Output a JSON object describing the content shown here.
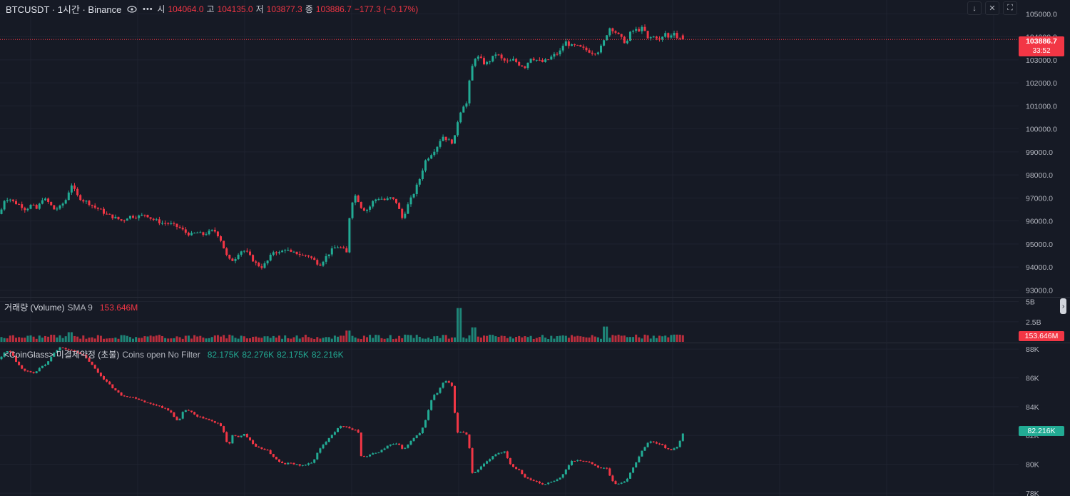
{
  "header": {
    "symbol": "BTCUSDT · 1시간 · Binance",
    "open_label": "시",
    "open": "104064.0",
    "high_label": "고",
    "high": "104135.0",
    "low_label": "저",
    "low": "103877.3",
    "close_label": "종",
    "close": "103886.7",
    "change": "−177.3 (−0.17%)"
  },
  "price_badge": {
    "price": "103886.7",
    "countdown": "33:52"
  },
  "volume": {
    "title": "거래량 (Volume)",
    "sma_label": "SMA 9",
    "value": "153.646M",
    "badge": "153.646M"
  },
  "open_interest": {
    "title": "<CoinGlass> 미결제약정 (초불)",
    "params": "Coins open No Filter",
    "o": "82.175K",
    "h": "82.276K",
    "l": "82.175K",
    "c": "82.216K",
    "badge": "82.216K"
  },
  "colors": {
    "up": "#22ab94",
    "down": "#f23645",
    "background": "#161a25",
    "grid": "#1f2330"
  },
  "icons": [
    "eye-icon",
    "more-icon",
    "arrow-down-icon",
    "collapse-icon",
    "fullscreen-icon"
  ],
  "chart_data": [
    {
      "type": "candlestick",
      "title": "BTCUSDT · 1시간 · Binance",
      "ylim": [
        92700,
        105600
      ],
      "y_ticks": [
        "105000.0",
        "104000.0",
        "103000.0",
        "102000.0",
        "101000.0",
        "100000.0",
        "99000.0",
        "98000.0",
        "97000.0",
        "96000.0",
        "95000.0",
        "94000.0",
        "93000.0"
      ],
      "anchors": [
        [
          0,
          96300
        ],
        [
          6,
          96900
        ],
        [
          12,
          97000
        ],
        [
          20,
          96800
        ],
        [
          28,
          96700
        ],
        [
          36,
          96500
        ],
        [
          44,
          96700
        ],
        [
          52,
          96500
        ],
        [
          60,
          97000
        ],
        [
          68,
          96800
        ],
        [
          76,
          96500
        ],
        [
          84,
          96600
        ],
        [
          92,
          96900
        ],
        [
          100,
          97600
        ],
        [
          108,
          97100
        ],
        [
          116,
          96900
        ],
        [
          124,
          96800
        ],
        [
          132,
          96600
        ],
        [
          140,
          96500
        ],
        [
          148,
          96300
        ],
        [
          156,
          96200
        ],
        [
          164,
          96100
        ],
        [
          172,
          96000
        ],
        [
          180,
          96200
        ],
        [
          188,
          96200
        ],
        [
          196,
          96200
        ],
        [
          204,
          96300
        ],
        [
          212,
          96100
        ],
        [
          220,
          96000
        ],
        [
          228,
          95900
        ],
        [
          236,
          95900
        ],
        [
          244,
          95800
        ],
        [
          252,
          95700
        ],
        [
          260,
          95500
        ],
        [
          268,
          95400
        ],
        [
          276,
          95500
        ],
        [
          284,
          95400
        ],
        [
          292,
          95500
        ],
        [
          300,
          95600
        ],
        [
          308,
          95300
        ],
        [
          314,
          94800
        ],
        [
          320,
          94300
        ],
        [
          328,
          94300
        ],
        [
          336,
          94700
        ],
        [
          344,
          94700
        ],
        [
          352,
          94400
        ],
        [
          360,
          94100
        ],
        [
          368,
          94000
        ],
        [
          376,
          94300
        ],
        [
          384,
          94700
        ],
        [
          392,
          94600
        ],
        [
          400,
          94800
        ],
        [
          408,
          94600
        ],
        [
          416,
          94600
        ],
        [
          424,
          94500
        ],
        [
          432,
          94500
        ],
        [
          440,
          94300
        ],
        [
          448,
          94100
        ],
        [
          456,
          94400
        ],
        [
          464,
          94700
        ],
        [
          472,
          94900
        ],
        [
          480,
          94800
        ],
        [
          486,
          94600
        ],
        [
          490,
          96200
        ],
        [
          496,
          97200
        ],
        [
          502,
          96900
        ],
        [
          508,
          96500
        ],
        [
          516,
          96500
        ],
        [
          524,
          96900
        ],
        [
          532,
          97000
        ],
        [
          540,
          96900
        ],
        [
          548,
          97000
        ],
        [
          556,
          96800
        ],
        [
          564,
          96100
        ],
        [
          572,
          96700
        ],
        [
          580,
          97200
        ],
        [
          588,
          97800
        ],
        [
          596,
          98600
        ],
        [
          604,
          98900
        ],
        [
          612,
          99200
        ],
        [
          620,
          99700
        ],
        [
          628,
          99500
        ],
        [
          636,
          99400
        ],
        [
          642,
          100400
        ],
        [
          648,
          101000
        ],
        [
          654,
          101100
        ],
        [
          660,
          102500
        ],
        [
          666,
          103100
        ],
        [
          672,
          103100
        ],
        [
          680,
          102800
        ],
        [
          688,
          103000
        ],
        [
          696,
          103300
        ],
        [
          704,
          103000
        ],
        [
          712,
          102900
        ],
        [
          720,
          103000
        ],
        [
          728,
          102800
        ],
        [
          736,
          102700
        ],
        [
          744,
          103100
        ],
        [
          752,
          103000
        ],
        [
          760,
          102900
        ],
        [
          768,
          103000
        ],
        [
          776,
          103200
        ],
        [
          784,
          103300
        ],
        [
          792,
          103800
        ],
        [
          800,
          103600
        ],
        [
          808,
          103600
        ],
        [
          816,
          103500
        ],
        [
          824,
          103400
        ],
        [
          832,
          103300
        ],
        [
          840,
          103400
        ],
        [
          848,
          103900
        ],
        [
          854,
          104400
        ],
        [
          860,
          104300
        ],
        [
          866,
          104100
        ],
        [
          872,
          103900
        ],
        [
          878,
          103700
        ],
        [
          884,
          104200
        ],
        [
          890,
          104300
        ],
        [
          896,
          104300
        ],
        [
          902,
          104400
        ],
        [
          908,
          103900
        ],
        [
          914,
          104000
        ],
        [
          920,
          104000
        ],
        [
          926,
          103800
        ],
        [
          932,
          104200
        ],
        [
          938,
          103900
        ],
        [
          944,
          104300
        ],
        [
          950,
          103900
        ],
        [
          958,
          103890
        ]
      ],
      "last": {
        "open": 104064.0,
        "high": 104135.0,
        "low": 103877.3,
        "close": 103886.7
      }
    },
    {
      "type": "bar",
      "title": "거래량 (Volume)",
      "ylim": [
        0,
        5.5
      ],
      "y_ticks": [
        "5B",
        "2.5B"
      ],
      "unit": "B",
      "spikes": [
        [
          100,
          1.2
        ],
        [
          488,
          1.4
        ],
        [
          642,
          4.2
        ],
        [
          664,
          1.8
        ],
        [
          850,
          1.9
        ],
        [
          948,
          0.9
        ]
      ]
    },
    {
      "type": "candlestick",
      "title": "<CoinGlass> 미결제약정 (초불)",
      "ylim": [
        77800,
        88400
      ],
      "y_ticks": [
        "88K",
        "86K",
        "84K",
        "82K",
        "80K",
        "78K"
      ],
      "anchors": [
        [
          0,
          87300
        ],
        [
          8,
          87900
        ],
        [
          16,
          87800
        ],
        [
          24,
          87000
        ],
        [
          32,
          86600
        ],
        [
          40,
          86400
        ],
        [
          48,
          86300
        ],
        [
          56,
          86700
        ],
        [
          66,
          87000
        ],
        [
          74,
          87700
        ],
        [
          84,
          88100
        ],
        [
          92,
          88000
        ],
        [
          100,
          87900
        ],
        [
          108,
          87800
        ],
        [
          116,
          87600
        ],
        [
          124,
          87200
        ],
        [
          132,
          86700
        ],
        [
          140,
          86200
        ],
        [
          150,
          85700
        ],
        [
          160,
          85200
        ],
        [
          170,
          84800
        ],
        [
          180,
          84700
        ],
        [
          190,
          84600
        ],
        [
          200,
          84400
        ],
        [
          210,
          84200
        ],
        [
          220,
          84100
        ],
        [
          230,
          83900
        ],
        [
          240,
          83600
        ],
        [
          250,
          82900
        ],
        [
          258,
          83800
        ],
        [
          266,
          83700
        ],
        [
          276,
          83300
        ],
        [
          286,
          83200
        ],
        [
          296,
          83000
        ],
        [
          306,
          82800
        ],
        [
          312,
          82500
        ],
        [
          320,
          81200
        ],
        [
          326,
          82000
        ],
        [
          334,
          81900
        ],
        [
          342,
          82100
        ],
        [
          350,
          81700
        ],
        [
          358,
          81200
        ],
        [
          366,
          81100
        ],
        [
          374,
          81000
        ],
        [
          382,
          80600
        ],
        [
          390,
          80200
        ],
        [
          398,
          80000
        ],
        [
          406,
          80100
        ],
        [
          414,
          80000
        ],
        [
          422,
          79900
        ],
        [
          430,
          80000
        ],
        [
          438,
          80100
        ],
        [
          446,
          80900
        ],
        [
          454,
          81400
        ],
        [
          462,
          81900
        ],
        [
          470,
          82300
        ],
        [
          478,
          82700
        ],
        [
          486,
          82600
        ],
        [
          494,
          82400
        ],
        [
          502,
          82300
        ],
        [
          506,
          80600
        ],
        [
          512,
          80500
        ],
        [
          520,
          80700
        ],
        [
          528,
          80800
        ],
        [
          536,
          81000
        ],
        [
          544,
          81300
        ],
        [
          550,
          81400
        ],
        [
          558,
          81400
        ],
        [
          566,
          81000
        ],
        [
          574,
          81500
        ],
        [
          582,
          81900
        ],
        [
          590,
          82200
        ],
        [
          598,
          83300
        ],
        [
          606,
          84700
        ],
        [
          614,
          85000
        ],
        [
          620,
          85600
        ],
        [
          626,
          85800
        ],
        [
          634,
          85400
        ],
        [
          640,
          82200
        ],
        [
          648,
          82300
        ],
        [
          656,
          82000
        ],
        [
          662,
          79400
        ],
        [
          670,
          79600
        ],
        [
          678,
          80000
        ],
        [
          686,
          80300
        ],
        [
          694,
          80700
        ],
        [
          700,
          80800
        ],
        [
          708,
          80900
        ],
        [
          714,
          80100
        ],
        [
          720,
          79800
        ],
        [
          728,
          79600
        ],
        [
          736,
          79100
        ],
        [
          744,
          78900
        ],
        [
          752,
          78800
        ],
        [
          760,
          78600
        ],
        [
          768,
          78700
        ],
        [
          776,
          78800
        ],
        [
          784,
          79000
        ],
        [
          792,
          79500
        ],
        [
          800,
          80200
        ],
        [
          808,
          80300
        ],
        [
          816,
          80200
        ],
        [
          824,
          80200
        ],
        [
          832,
          80000
        ],
        [
          840,
          79700
        ],
        [
          850,
          79800
        ],
        [
          856,
          79100
        ],
        [
          862,
          78600
        ],
        [
          870,
          78700
        ],
        [
          878,
          78900
        ],
        [
          886,
          79600
        ],
        [
          894,
          80400
        ],
        [
          902,
          81100
        ],
        [
          910,
          81600
        ],
        [
          918,
          81500
        ],
        [
          926,
          81400
        ],
        [
          934,
          81100
        ],
        [
          942,
          81000
        ],
        [
          950,
          81200
        ],
        [
          958,
          82216
        ]
      ]
    }
  ]
}
